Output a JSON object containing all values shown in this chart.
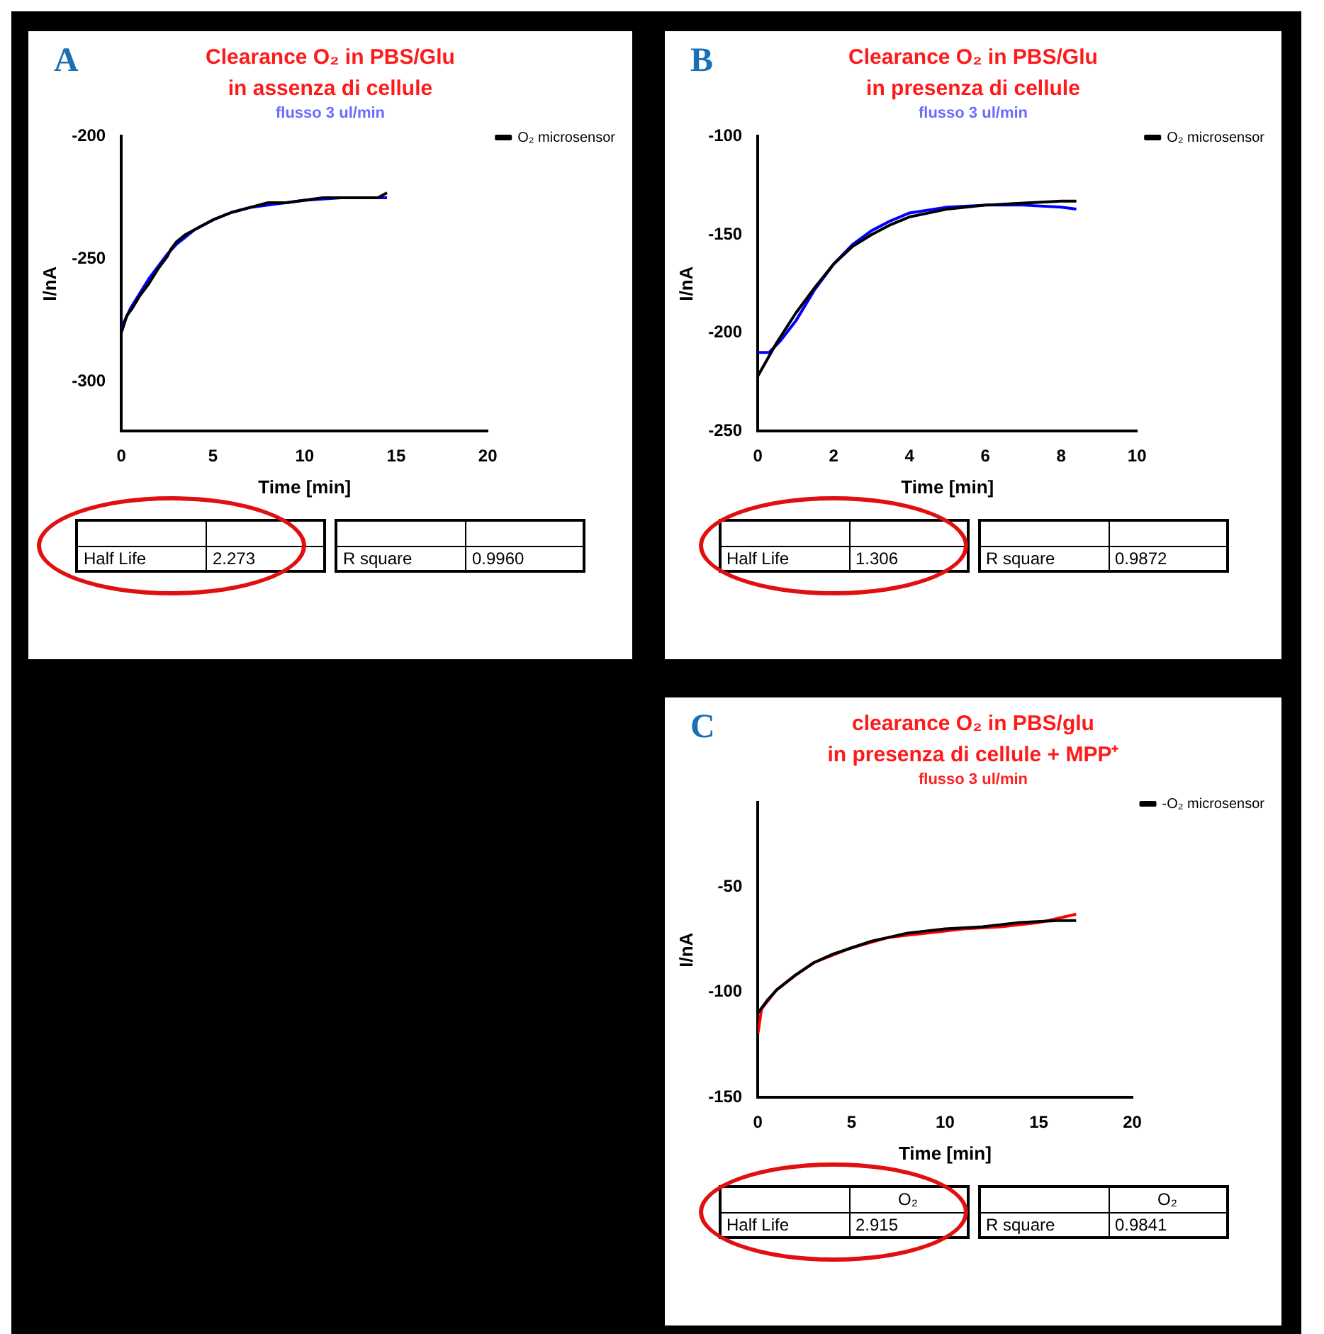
{
  "chart_data": [
    {
      "type": "line",
      "title": "Clearance O₂ in PBS/Glu\nin assenza di cellule",
      "subtitle": "flusso 3 ul/min",
      "xlabel": "Time [min]",
      "ylabel": "I/nA",
      "xlim": [
        0,
        20
      ],
      "xticks": [
        0,
        5,
        10,
        15,
        20
      ],
      "ylim": [
        -320,
        -200
      ],
      "yticks": [
        -200,
        -250,
        -300
      ],
      "grid": false,
      "legend": "right",
      "marker": "none",
      "annotations": [
        "A",
        "Half Life",
        "2.273",
        "R square",
        "0.9960"
      ],
      "series": [
        {
          "name": "O₂ microsensor",
          "color": "#000000",
          "x": [
            0,
            0.3,
            0.6,
            1,
            1.5,
            2,
            2.5,
            2.7,
            3,
            3.5,
            4,
            5,
            6,
            7,
            8,
            9,
            10,
            11,
            12,
            13,
            14,
            14.5
          ],
          "values": [
            -280,
            -273,
            -270,
            -265,
            -260,
            -254,
            -249,
            -246,
            -243,
            -240,
            -238,
            -234,
            -231,
            -229,
            -227,
            -227,
            -226,
            -225,
            -225,
            -225,
            -225,
            -223
          ]
        },
        {
          "color": "#0000ff",
          "x": [
            0,
            0.5,
            1,
            1.5,
            2,
            2.5,
            3,
            4,
            5,
            6,
            7,
            8,
            10,
            12,
            14,
            14.5
          ],
          "values": [
            -278,
            -270,
            -264,
            -258,
            -253,
            -248,
            -244,
            -238,
            -234,
            -231,
            -229,
            -228,
            -226,
            -225,
            -225,
            -225
          ]
        }
      ]
    },
    {
      "type": "line",
      "title": "Clearance O₂ in PBS/Glu\nin presenza di cellule",
      "subtitle": "flusso 3 ul/min",
      "xlabel": "Time [min]",
      "ylabel": "I/nA",
      "xlim": [
        0,
        10
      ],
      "xticks": [
        0,
        2,
        4,
        6,
        8,
        10
      ],
      "ylim": [
        -250,
        -100
      ],
      "yticks": [
        -100,
        -150,
        -200,
        -250
      ],
      "grid": false,
      "legend": "right",
      "marker": "none",
      "annotations": [
        "B",
        "Half Life",
        "1.306",
        "R square",
        "0.9872"
      ],
      "series": [
        {
          "name": "O₂ microsensor",
          "color": "#000000",
          "x": [
            0,
            0.5,
            1,
            1.5,
            2,
            2.5,
            3,
            3.5,
            4,
            5,
            6,
            7,
            8,
            8.4
          ],
          "values": [
            -222,
            -205,
            -190,
            -177,
            -165,
            -156,
            -150,
            -145,
            -141,
            -137,
            -135,
            -134,
            -133,
            -133
          ]
        },
        {
          "color": "#0000ff",
          "x": [
            0,
            0.3,
            0.6,
            1,
            1.5,
            2,
            2.5,
            3,
            3.5,
            4,
            5,
            6,
            7,
            8,
            8.4
          ],
          "values": [
            -210,
            -210,
            -204,
            -194,
            -178,
            -165,
            -155,
            -148,
            -143,
            -139,
            -136,
            -135,
            -135,
            -136,
            -137
          ]
        }
      ]
    },
    {
      "type": "line",
      "title": "clearance O₂ in PBS/glu\nin presenza di cellule + MPP⁺",
      "subtitle": "flusso 3 ul/min",
      "xlabel": "Time [min]",
      "ylabel": "I/nA",
      "xlim": [
        0,
        20
      ],
      "xticks": [
        0,
        5,
        10,
        15,
        20
      ],
      "ylim": [
        -150,
        -10
      ],
      "yticks": [
        -50,
        -100,
        -150
      ],
      "grid": false,
      "legend": "right",
      "marker": "none",
      "annotations": [
        "C",
        "Half Life",
        "O₂",
        "2.915",
        "R square",
        "O₂",
        "0.9841"
      ],
      "series": [
        {
          "name": "-O₂ microsensor",
          "color": "#000000",
          "x": [
            0,
            0.5,
            1,
            2,
            3,
            4,
            5,
            6,
            7,
            8,
            10,
            12,
            14,
            16,
            17
          ],
          "values": [
            -110,
            -104,
            -99,
            -92,
            -86,
            -82,
            -79,
            -76,
            -74,
            -72,
            -70,
            -69,
            -67,
            -66,
            -66
          ]
        },
        {
          "color": "#ff0000",
          "x": [
            0,
            0.2,
            1,
            2,
            3,
            5,
            7,
            9,
            11,
            13,
            15,
            17
          ],
          "values": [
            -120,
            -108,
            -99,
            -92,
            -86,
            -79,
            -74,
            -72,
            -70,
            -69,
            -67,
            -63
          ]
        }
      ]
    }
  ]
}
